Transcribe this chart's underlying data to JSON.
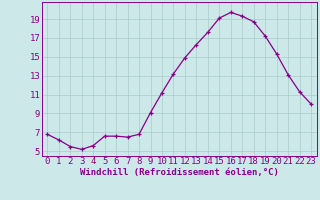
{
  "x": [
    0,
    1,
    2,
    3,
    4,
    5,
    6,
    7,
    8,
    9,
    10,
    11,
    12,
    13,
    14,
    15,
    16,
    17,
    18,
    19,
    20,
    21,
    22,
    23
  ],
  "y": [
    6.8,
    6.2,
    5.5,
    5.2,
    5.6,
    6.6,
    6.6,
    6.5,
    6.8,
    9.1,
    11.2,
    13.2,
    14.9,
    16.3,
    17.6,
    19.1,
    19.7,
    19.3,
    18.7,
    17.2,
    15.3,
    13.1,
    11.3,
    10.0
  ],
  "line_color": "#880088",
  "marker": "+",
  "bg_color": "#cce8e8",
  "grid_color": "#aacccc",
  "xlabel": "Windchill (Refroidissement éolien,°C)",
  "ylim": [
    4.5,
    20.8
  ],
  "xlim": [
    -0.5,
    23.5
  ],
  "yticks": [
    5,
    7,
    9,
    11,
    13,
    15,
    17,
    19
  ],
  "xticks": [
    0,
    1,
    2,
    3,
    4,
    5,
    6,
    7,
    8,
    9,
    10,
    11,
    12,
    13,
    14,
    15,
    16,
    17,
    18,
    19,
    20,
    21,
    22,
    23
  ],
  "tick_color": "#880088",
  "label_fontsize": 6.5,
  "tick_fontsize": 6.5,
  "marker_size": 3,
  "linewidth": 0.9
}
